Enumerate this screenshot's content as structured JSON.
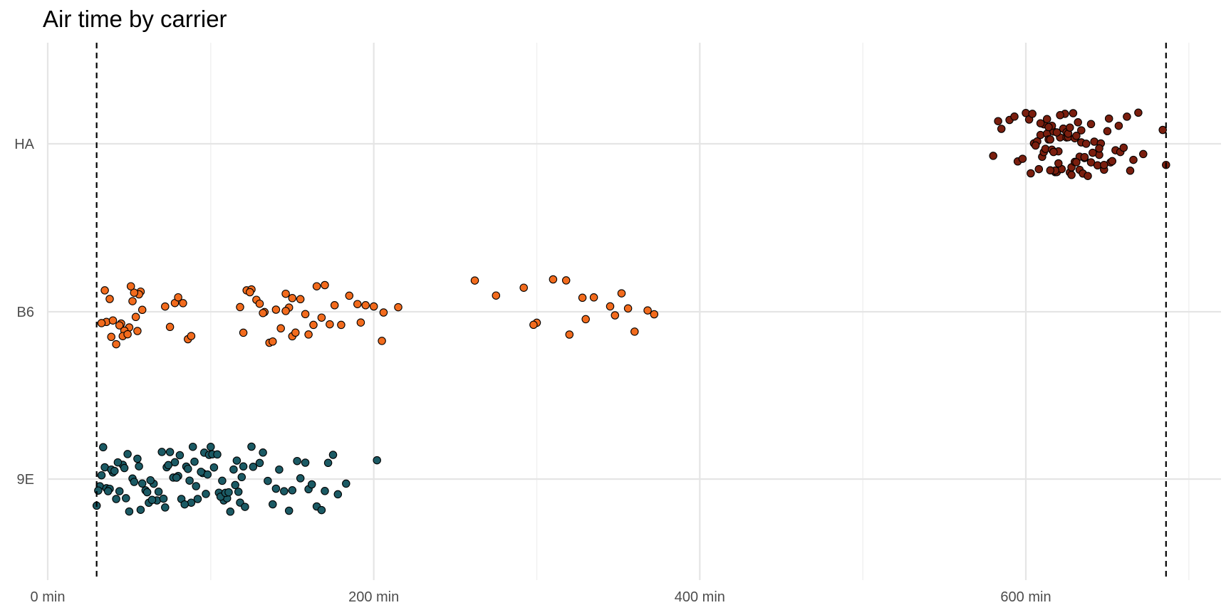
{
  "chart_data": {
    "type": "scatter",
    "title": "Air time by carrier",
    "xlabel": "",
    "ylabel": "",
    "x_unit_suffix": " min",
    "xlim": [
      0,
      700
    ],
    "x_ticks": [
      0,
      200,
      400,
      600
    ],
    "x_tick_labels": [
      "0 min",
      "200 min",
      "400 min",
      "600 min"
    ],
    "categories": [
      "9E",
      "B6",
      "HA"
    ],
    "grid": true,
    "legend": "none",
    "reference_lines": [
      {
        "x": 30,
        "style": "dashed",
        "color": "#000000"
      },
      {
        "x": 686,
        "style": "dashed",
        "color": "#000000"
      }
    ],
    "series": [
      {
        "category": "B6",
        "color": "#F26B1D",
        "values": [
          36,
          38,
          40,
          42,
          45,
          33,
          35,
          39,
          44,
          48,
          50,
          52,
          55,
          57,
          54,
          56,
          53,
          47,
          46,
          49,
          51,
          58,
          75,
          78,
          80,
          83,
          86,
          88,
          72,
          118,
          120,
          122,
          125,
          128,
          130,
          133,
          136,
          140,
          143,
          146,
          148,
          150,
          152,
          155,
          158,
          160,
          163,
          165,
          168,
          170,
          173,
          176,
          180,
          185,
          190,
          195,
          200,
          205,
          215,
          262,
          275,
          292,
          300,
          310,
          328,
          335,
          345,
          352,
          360,
          368,
          372,
          320,
          330,
          298,
          318,
          348,
          356,
          206,
          192,
          150,
          146,
          138,
          124,
          132
        ]
      },
      {
        "category": "9E",
        "color": "#1B5A64",
        "values": [
          30,
          32,
          34,
          36,
          38,
          40,
          42,
          44,
          46,
          48,
          50,
          52,
          55,
          58,
          60,
          62,
          65,
          68,
          70,
          72,
          75,
          78,
          80,
          82,
          85,
          88,
          90,
          92,
          95,
          98,
          100,
          102,
          105,
          108,
          110,
          112,
          115,
          118,
          120,
          125,
          130,
          135,
          140,
          145,
          150,
          155,
          160,
          165,
          170,
          175,
          183,
          202,
          31,
          33,
          35,
          37,
          39,
          41,
          43,
          47,
          49,
          53,
          57,
          61,
          63,
          67,
          71,
          73,
          77,
          79,
          81,
          84,
          86,
          89,
          91,
          94,
          96,
          99,
          101,
          104,
          106,
          109,
          111,
          114,
          116,
          119,
          121,
          126,
          132,
          138,
          142,
          148,
          153,
          158,
          162,
          168,
          172,
          178,
          56,
          64,
          74,
          87,
          97,
          107,
          117
        ]
      },
      {
        "category": "HA",
        "color": "#7A1E0E",
        "values": [
          580,
          585,
          590,
          595,
          600,
          602,
          605,
          607,
          609,
          610,
          611,
          612,
          613,
          614,
          615,
          616,
          617,
          618,
          619,
          620,
          621,
          622,
          623,
          624,
          625,
          626,
          627,
          628,
          629,
          630,
          631,
          632,
          633,
          634,
          635,
          636,
          638,
          640,
          642,
          645,
          648,
          650,
          652,
          655,
          658,
          660,
          662,
          664,
          666,
          669,
          672,
          684,
          686,
          598,
          603,
          606,
          608,
          611,
          613,
          616,
          618,
          620,
          623,
          625,
          628,
          630,
          633,
          636,
          640,
          644,
          648,
          653,
          657,
          583,
          593,
          614,
          626,
          634,
          646,
          621,
          619,
          617,
          615,
          609,
          604,
          627,
          631,
          637,
          641,
          645,
          651
        ]
      }
    ]
  }
}
